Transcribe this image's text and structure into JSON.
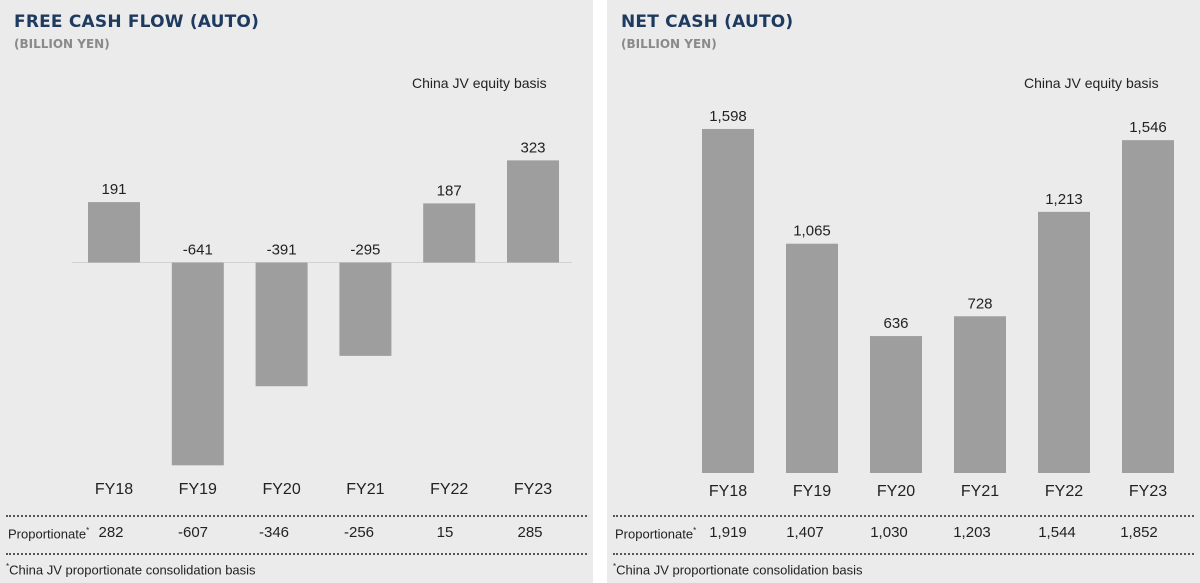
{
  "left": {
    "title": "FREE CASH FLOW (AUTO)",
    "unit": "(BILLION YEN)",
    "basis_note": "China JV equity basis",
    "proportionate_label": "Proportionate",
    "proportionate_mark": "*",
    "proportionate_values": [
      "282",
      "-607",
      "-346",
      "-256",
      "15",
      "285"
    ],
    "footnote_mark": "*",
    "footnote": "China JV proportionate consolidation basis"
  },
  "right": {
    "title": "NET CASH (AUTO)",
    "unit": "(BILLION YEN)",
    "basis_note": "China JV equity basis",
    "proportionate_label": "Proportionate",
    "proportionate_mark": "*",
    "proportionate_values": [
      "1,919",
      "1,407",
      "1,030",
      "1,203",
      "1,544",
      "1,852"
    ],
    "footnote_mark": "*",
    "footnote": "China JV proportionate consolidation basis"
  },
  "colors": {
    "bar": "#9e9e9e",
    "panel_bg": "#ebebeb",
    "title": "#1e3a5f",
    "unit": "#8a8a8a"
  },
  "chart_data": [
    {
      "type": "bar",
      "title": "FREE CASH FLOW (AUTO)",
      "subtitle": "(BILLION YEN)",
      "categories": [
        "FY18",
        "FY19",
        "FY20",
        "FY21",
        "FY22",
        "FY23"
      ],
      "values": [
        191,
        -641,
        -391,
        -295,
        187,
        323
      ],
      "labels": [
        "191",
        "-641",
        "-391",
        "-295",
        "187",
        "323"
      ],
      "ylim": [
        -700,
        400
      ],
      "grid": false,
      "legend": "none"
    },
    {
      "type": "bar",
      "title": "NET CASH (AUTO)",
      "subtitle": "(BILLION YEN)",
      "categories": [
        "FY18",
        "FY19",
        "FY20",
        "FY21",
        "FY22",
        "FY23"
      ],
      "values": [
        1598,
        1065,
        636,
        728,
        1213,
        1546
      ],
      "labels": [
        "1,598",
        "1,065",
        "636",
        "728",
        "1,213",
        "1,546"
      ],
      "ylim": [
        0,
        1700
      ],
      "grid": false,
      "legend": "none"
    }
  ]
}
